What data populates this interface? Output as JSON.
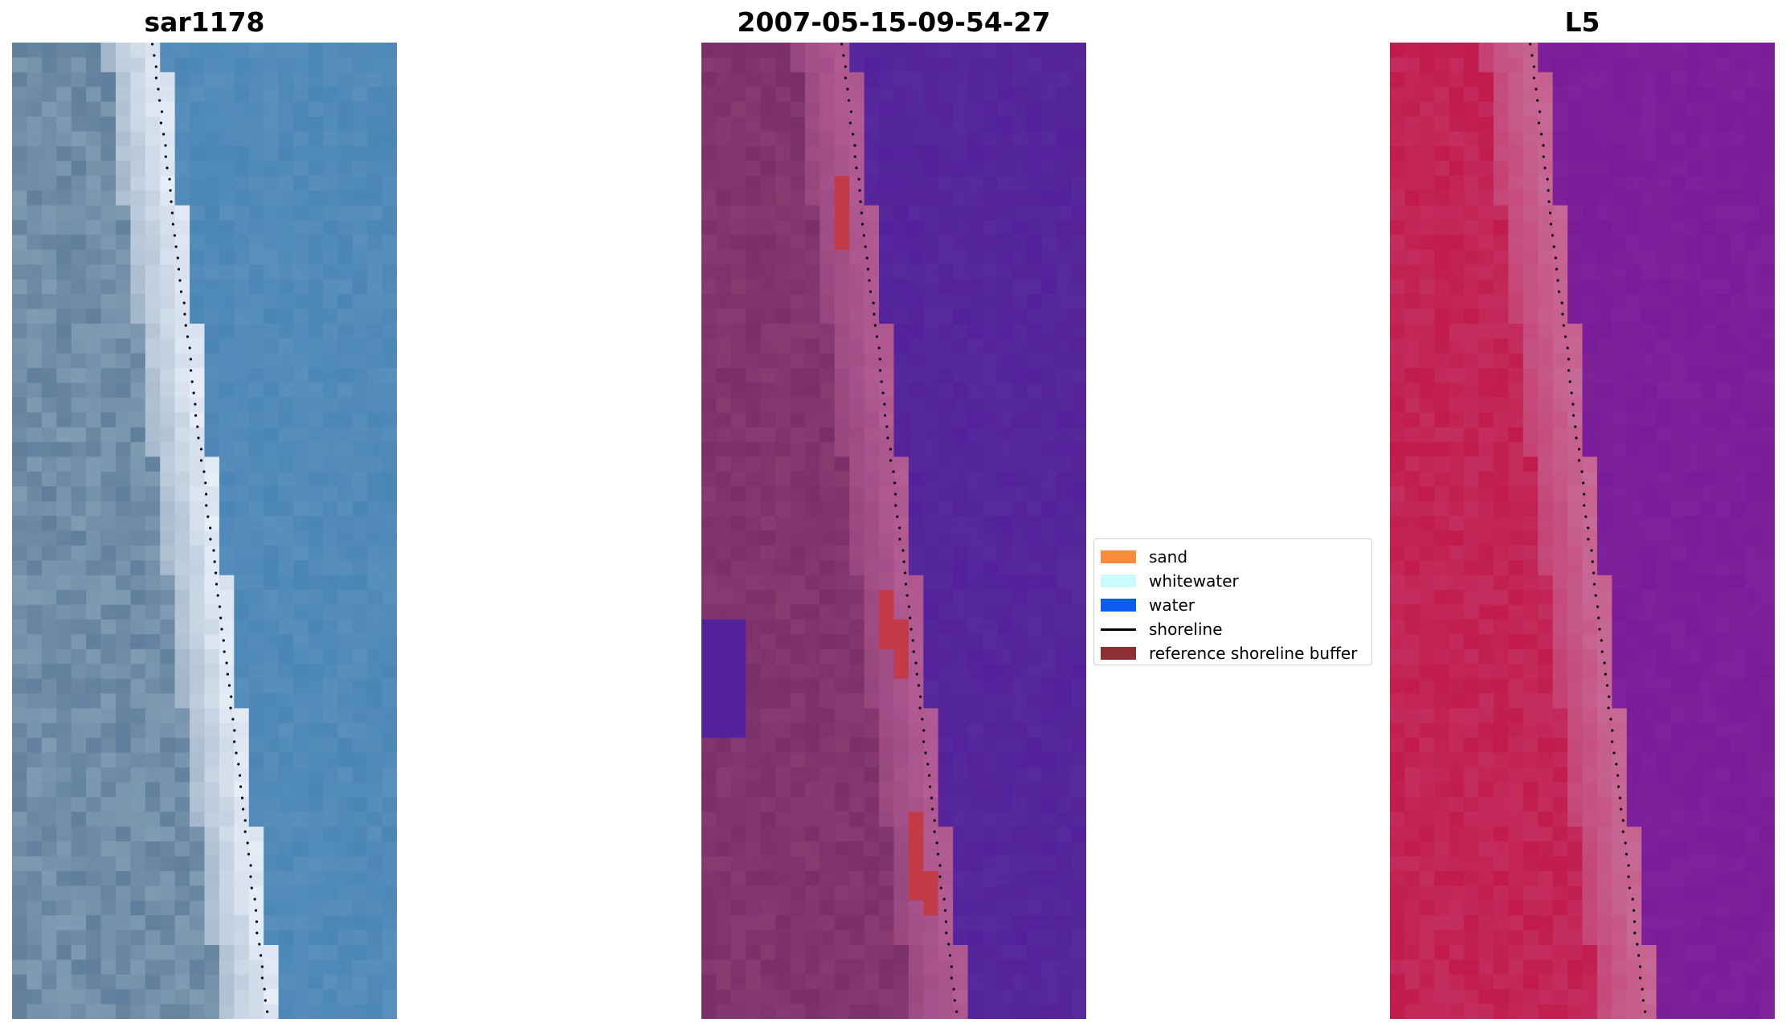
{
  "panels": [
    {
      "title": "sar1178",
      "kind": "rgb",
      "colors": {
        "land": "#5f7f9c",
        "beach": "#e7eef8",
        "sea": "#4a86b6"
      }
    },
    {
      "title": "2007-05-15-09-54-27",
      "kind": "classified",
      "colors": {
        "land": "#7a2f66",
        "beach": "#b45c96",
        "sea": "#53229a",
        "buffer": "#c23a48"
      }
    },
    {
      "title": "L5",
      "kind": "falsecolor",
      "colors": {
        "land": "#c21a4c",
        "beach": "#c76a98",
        "sea": "#7a1c98"
      }
    }
  ],
  "legend": {
    "items": [
      {
        "label": "sand",
        "type": "patch",
        "color": "#f98a3e"
      },
      {
        "label": "whitewater",
        "type": "patch",
        "color": "#c9fbff"
      },
      {
        "label": "water",
        "type": "patch",
        "color": "#0b5cf0"
      },
      {
        "label": "shoreline",
        "type": "line",
        "color": "#000000"
      },
      {
        "label": "reference shoreline buffer",
        "type": "patch",
        "color": "#8e2f35"
      }
    ]
  }
}
